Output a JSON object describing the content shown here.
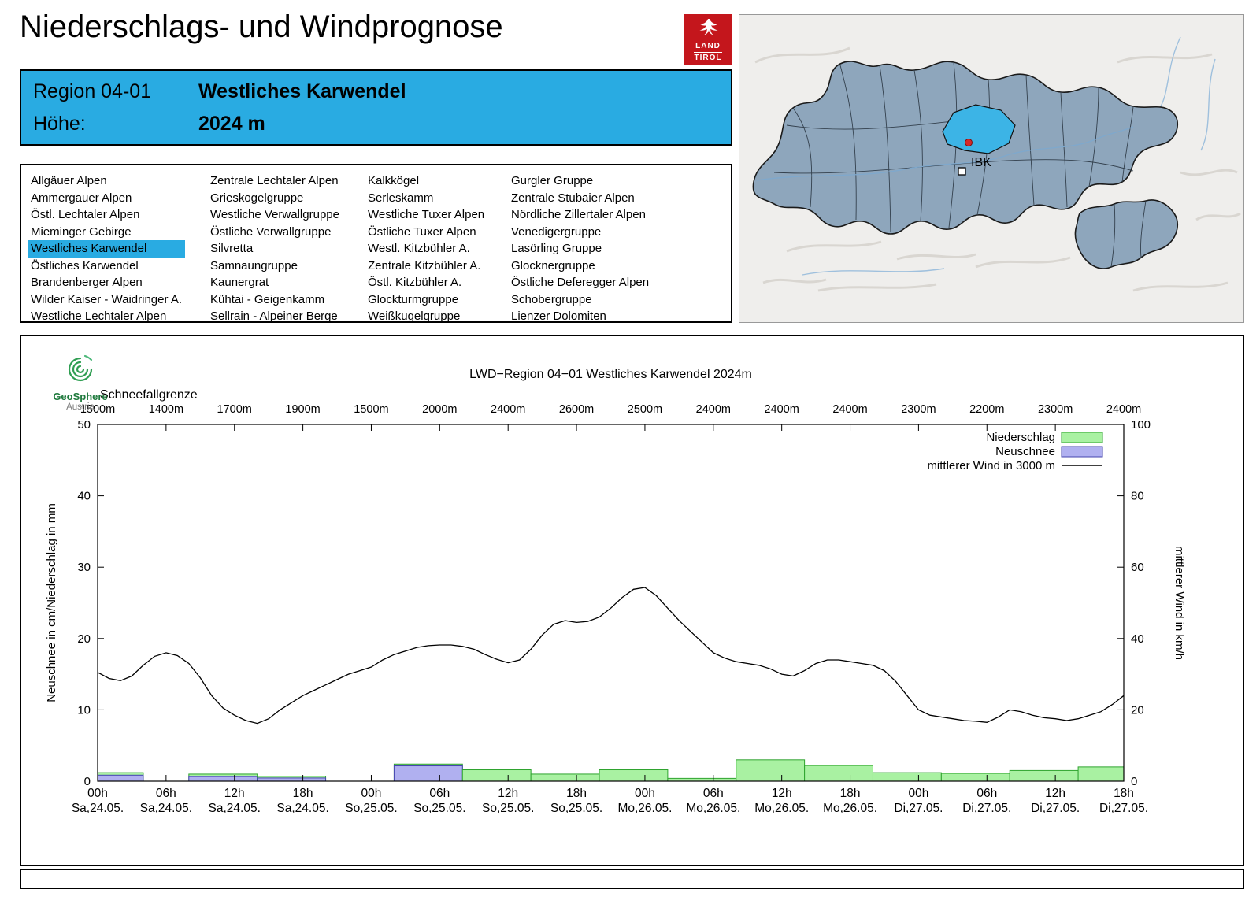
{
  "header": {
    "title": "Niederschlags- und Windprognose",
    "logo": {
      "line1": "LAND",
      "line2": "TIROL"
    }
  },
  "region_info": {
    "region_label": "Region 04-01",
    "region_name": "Westliches Karwendel",
    "altitude_label": "Höhe:",
    "altitude_value": "2024 m"
  },
  "region_list": {
    "selected": "Westliches Karwendel",
    "columns": [
      [
        "Allgäuer Alpen",
        "Ammergauer Alpen",
        "Östl. Lechtaler Alpen",
        "Mieminger Gebirge",
        "Westliches Karwendel",
        "Östliches Karwendel",
        "Brandenberger Alpen",
        "Wilder Kaiser - Waidringer A.",
        "Westliche Lechtaler Alpen"
      ],
      [
        "Zentrale Lechtaler Alpen",
        "Grieskogelgruppe",
        "Westliche Verwallgruppe",
        "Östliche Verwallgruppe",
        "Silvretta",
        "Samnaungruppe",
        "Kaunergrat",
        "Kühtai - Geigenkamm",
        "Sellrain - Alpeiner Berge"
      ],
      [
        "Kalkkögel",
        "Serleskamm",
        "Westliche Tuxer Alpen",
        "Östliche Tuxer Alpen",
        "Westl. Kitzbühler A.",
        "Zentrale Kitzbühler A.",
        "Östl. Kitzbühler A.",
        "Glockturmgruppe",
        "Weißkugelgruppe"
      ],
      [
        "Gurgler Gruppe",
        "Zentrale Stubaier Alpen",
        "Nördliche Zillertaler Alpen",
        "Venedigergruppe",
        "Lasörling Gruppe",
        "Glocknergruppe",
        "Östliche Deferegger Alpen",
        "Schobergruppe",
        "Lienzer Dolomiten"
      ]
    ]
  },
  "map": {
    "marker_label": "IBK"
  },
  "branding": {
    "geosphere_line1": "GeoSphere",
    "geosphere_line2": "Austria"
  },
  "colors": {
    "accent_blue": "#29abe2",
    "logo_red": "#c4161c",
    "niederschlag_fill": "#a9f1a2",
    "niederschlag_stroke": "#2fa32f",
    "neuschnee_fill": "#b0b0f0",
    "neuschnee_stroke": "#4444ae",
    "wind_line": "#000000",
    "map_region": "#8ea6bc",
    "map_highlight": "#3cb4e6",
    "geosphere_green": "#2f9e52"
  },
  "chart_data": {
    "type": "bar",
    "title": "LWD−Region 04−01 Westliches Karwendel 2024m",
    "snowline_label": "Schneefallgrenze",
    "snowline_values": [
      "1500m",
      "1400m",
      "1700m",
      "1900m",
      "1500m",
      "2000m",
      "2400m",
      "2600m",
      "2500m",
      "2400m",
      "2400m",
      "2400m",
      "2300m",
      "2200m",
      "2300m",
      "2400m"
    ],
    "ylabel_left": "Neuschnee in cm/Niederschlag in mm",
    "ylabel_right": "mittlerer Wind in km/h",
    "ylim_left": [
      0,
      50
    ],
    "ylim_right": [
      0,
      100
    ],
    "yticks_left": [
      0,
      10,
      20,
      30,
      40,
      50
    ],
    "yticks_right": [
      0,
      20,
      40,
      60,
      80,
      100
    ],
    "hours_total": 90,
    "xticks": [
      {
        "hour": 0,
        "time": "00h",
        "date": "Sa,24.05."
      },
      {
        "hour": 6,
        "time": "06h",
        "date": "Sa,24.05."
      },
      {
        "hour": 12,
        "time": "12h",
        "date": "Sa,24.05."
      },
      {
        "hour": 18,
        "time": "18h",
        "date": "Sa,24.05."
      },
      {
        "hour": 24,
        "time": "00h",
        "date": "So,25.05."
      },
      {
        "hour": 30,
        "time": "06h",
        "date": "So,25.05."
      },
      {
        "hour": 36,
        "time": "12h",
        "date": "So,25.05."
      },
      {
        "hour": 42,
        "time": "18h",
        "date": "So,25.05."
      },
      {
        "hour": 48,
        "time": "00h",
        "date": "Mo,26.05."
      },
      {
        "hour": 54,
        "time": "06h",
        "date": "Mo,26.05."
      },
      {
        "hour": 60,
        "time": "12h",
        "date": "Mo,26.05."
      },
      {
        "hour": 66,
        "time": "18h",
        "date": "Mo,26.05."
      },
      {
        "hour": 72,
        "time": "00h",
        "date": "Di,27.05."
      },
      {
        "hour": 78,
        "time": "06h",
        "date": "Di,27.05."
      },
      {
        "hour": 84,
        "time": "12h",
        "date": "Di,27.05."
      },
      {
        "hour": 90,
        "time": "18h",
        "date": "Di,27.05."
      }
    ],
    "legend": [
      "Niederschlag",
      "Neuschnee",
      "mittlerer Wind in 3000 m"
    ],
    "bars": [
      {
        "from_h": 0,
        "to_h": 4,
        "niederschlag_mm": 1.2,
        "neuschnee_cm": 0.85
      },
      {
        "from_h": 8,
        "to_h": 14,
        "niederschlag_mm": 1.0,
        "neuschnee_cm": 0.65
      },
      {
        "from_h": 14,
        "to_h": 20,
        "niederschlag_mm": 0.7,
        "neuschnee_cm": 0.45
      },
      {
        "from_h": 26,
        "to_h": 32,
        "niederschlag_mm": 2.4,
        "neuschnee_cm": 2.15
      },
      {
        "from_h": 32,
        "to_h": 38,
        "niederschlag_mm": 1.6,
        "neuschnee_cm": 0
      },
      {
        "from_h": 38,
        "to_h": 44,
        "niederschlag_mm": 1.0,
        "neuschnee_cm": 0
      },
      {
        "from_h": 44,
        "to_h": 50,
        "niederschlag_mm": 1.6,
        "neuschnee_cm": 0
      },
      {
        "from_h": 50,
        "to_h": 56,
        "niederschlag_mm": 0.4,
        "neuschnee_cm": 0
      },
      {
        "from_h": 56,
        "to_h": 62,
        "niederschlag_mm": 3.0,
        "neuschnee_cm": 0
      },
      {
        "from_h": 62,
        "to_h": 68,
        "niederschlag_mm": 2.2,
        "neuschnee_cm": 0
      },
      {
        "from_h": 68,
        "to_h": 74,
        "niederschlag_mm": 1.2,
        "neuschnee_cm": 0
      },
      {
        "from_h": 74,
        "to_h": 80,
        "niederschlag_mm": 1.1,
        "neuschnee_cm": 0
      },
      {
        "from_h": 80,
        "to_h": 86,
        "niederschlag_mm": 1.5,
        "neuschnee_cm": 0
      },
      {
        "from_h": 86,
        "to_h": 90,
        "niederschlag_mm": 2.0,
        "neuschnee_cm": 0
      }
    ],
    "wind_kmh": [
      [
        0,
        30.5
      ],
      [
        1,
        28.8
      ],
      [
        2,
        28.2
      ],
      [
        3,
        29.5
      ],
      [
        4,
        32.5
      ],
      [
        5,
        35
      ],
      [
        6,
        36
      ],
      [
        7,
        35.2
      ],
      [
        8,
        33
      ],
      [
        9,
        29
      ],
      [
        10,
        24
      ],
      [
        11,
        20.5
      ],
      [
        12,
        18.5
      ],
      [
        13,
        17
      ],
      [
        14,
        16.2
      ],
      [
        15,
        17.5
      ],
      [
        16,
        20
      ],
      [
        17,
        22
      ],
      [
        18,
        24
      ],
      [
        19,
        25.5
      ],
      [
        20,
        27
      ],
      [
        21,
        28.5
      ],
      [
        22,
        30
      ],
      [
        23,
        31
      ],
      [
        24,
        32
      ],
      [
        25,
        34
      ],
      [
        26,
        35.5
      ],
      [
        27,
        36.5
      ],
      [
        28,
        37.5
      ],
      [
        29,
        38
      ],
      [
        30,
        38.2
      ],
      [
        31,
        38.2
      ],
      [
        32,
        37.8
      ],
      [
        33,
        37
      ],
      [
        34,
        35.5
      ],
      [
        35,
        34.2
      ],
      [
        36,
        33.2
      ],
      [
        37,
        34
      ],
      [
        38,
        37
      ],
      [
        39,
        41
      ],
      [
        40,
        44
      ],
      [
        41,
        45
      ],
      [
        42,
        44.5
      ],
      [
        43,
        44.8
      ],
      [
        44,
        46
      ],
      [
        45,
        48.5
      ],
      [
        46,
        51.5
      ],
      [
        47,
        53.8
      ],
      [
        48,
        54.3
      ],
      [
        49,
        52
      ],
      [
        50,
        48.5
      ],
      [
        51,
        45
      ],
      [
        52,
        42
      ],
      [
        53,
        39
      ],
      [
        54,
        36
      ],
      [
        55,
        34.5
      ],
      [
        56,
        33.5
      ],
      [
        57,
        33
      ],
      [
        58,
        32.5
      ],
      [
        59,
        31.5
      ],
      [
        60,
        30
      ],
      [
        61,
        29.5
      ],
      [
        62,
        31
      ],
      [
        63,
        33
      ],
      [
        64,
        34
      ],
      [
        65,
        34
      ],
      [
        66,
        33.5
      ],
      [
        67,
        33
      ],
      [
        68,
        32.5
      ],
      [
        69,
        31
      ],
      [
        70,
        28
      ],
      [
        71,
        24
      ],
      [
        72,
        20
      ],
      [
        73,
        18.5
      ],
      [
        74,
        18
      ],
      [
        75,
        17.5
      ],
      [
        76,
        17
      ],
      [
        77,
        16.8
      ],
      [
        78,
        16.5
      ],
      [
        79,
        18
      ],
      [
        80,
        20
      ],
      [
        81,
        19.5
      ],
      [
        82,
        18.5
      ],
      [
        83,
        17.8
      ],
      [
        84,
        17.5
      ],
      [
        85,
        17
      ],
      [
        86,
        17.5
      ],
      [
        87,
        18.5
      ],
      [
        88,
        19.5
      ],
      [
        89,
        21.5
      ],
      [
        90,
        24
      ]
    ]
  }
}
